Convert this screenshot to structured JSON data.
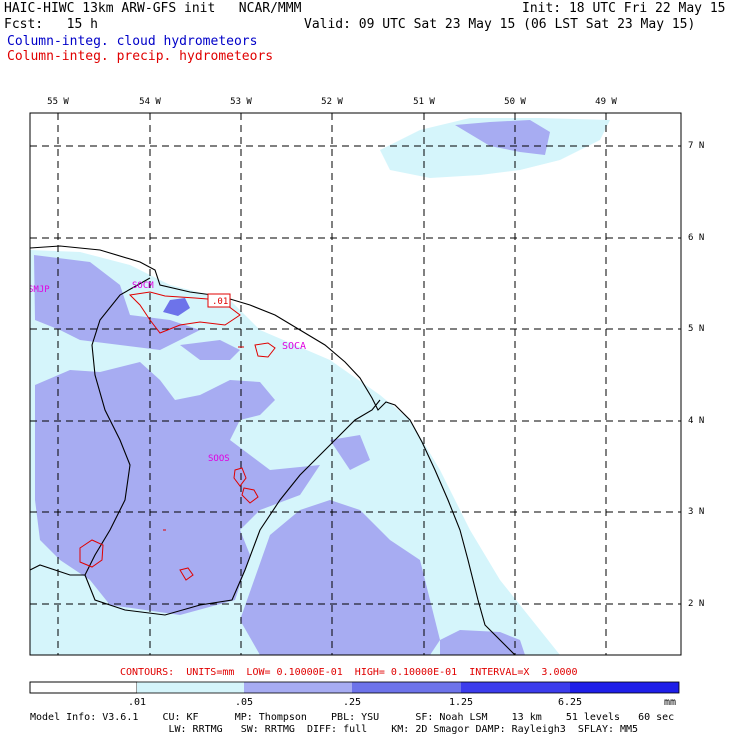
{
  "header": {
    "model_title": "HAIC-HIWC 13km ARW-GFS init   NCAR/MMM",
    "init": "Init: 18 UTC Fri 22 May 15",
    "fcst": "Fcst:   15 h",
    "valid": "Valid: 09 UTC Sat 23 May 15 (06 LST Sat 23 May 15)",
    "field1": "Column-integ. cloud hydrometeors",
    "field2": "Column-integ. precip. hydrometeors"
  },
  "map": {
    "lon_labels": [
      "55 W",
      "54 W",
      "53 W",
      "52 W",
      "51 W",
      "50 W",
      "49 W"
    ],
    "lat_labels": [
      "7 N",
      "6 N",
      "5 N",
      "4 N",
      "3 N",
      "2 N"
    ],
    "stations": [
      "SMJP",
      "SOCM",
      "SOCA",
      "SOOS"
    ],
    "contour_label": ".01",
    "colors": {
      "fill_light": "#d5f5fb",
      "fill_medium": "#a7acf2",
      "fill_dark": "#6d73ea",
      "precip_contour": "#e00000",
      "station": "#e000e0"
    }
  },
  "contours_line": "CONTOURS:  UNITS=mm  LOW= 0.10000E-01  HIGH= 0.10000E-01  INTERVAL=X  3.0000",
  "colorbar": {
    "labels": [
      ".01",
      ".05",
      ".25",
      "1.25",
      "6.25"
    ],
    "unit": "mm",
    "colors": [
      "#ffffff",
      "#d5f5fb",
      "#a7acf2",
      "#6d73ea",
      "#3c3cec",
      "#1e1ee8"
    ]
  },
  "model_info": {
    "line1": "Model Info: V3.6.1    CU: KF      MP: Thompson    PBL: YSU      SF: Noah LSM    13 km    51 levels   60 sec",
    "line2": "                       LW: RRTMG   SW: RRTMG  DIFF: full    KM: 2D Smagor DAMP: Rayleigh3  SFLAY: MM5"
  }
}
